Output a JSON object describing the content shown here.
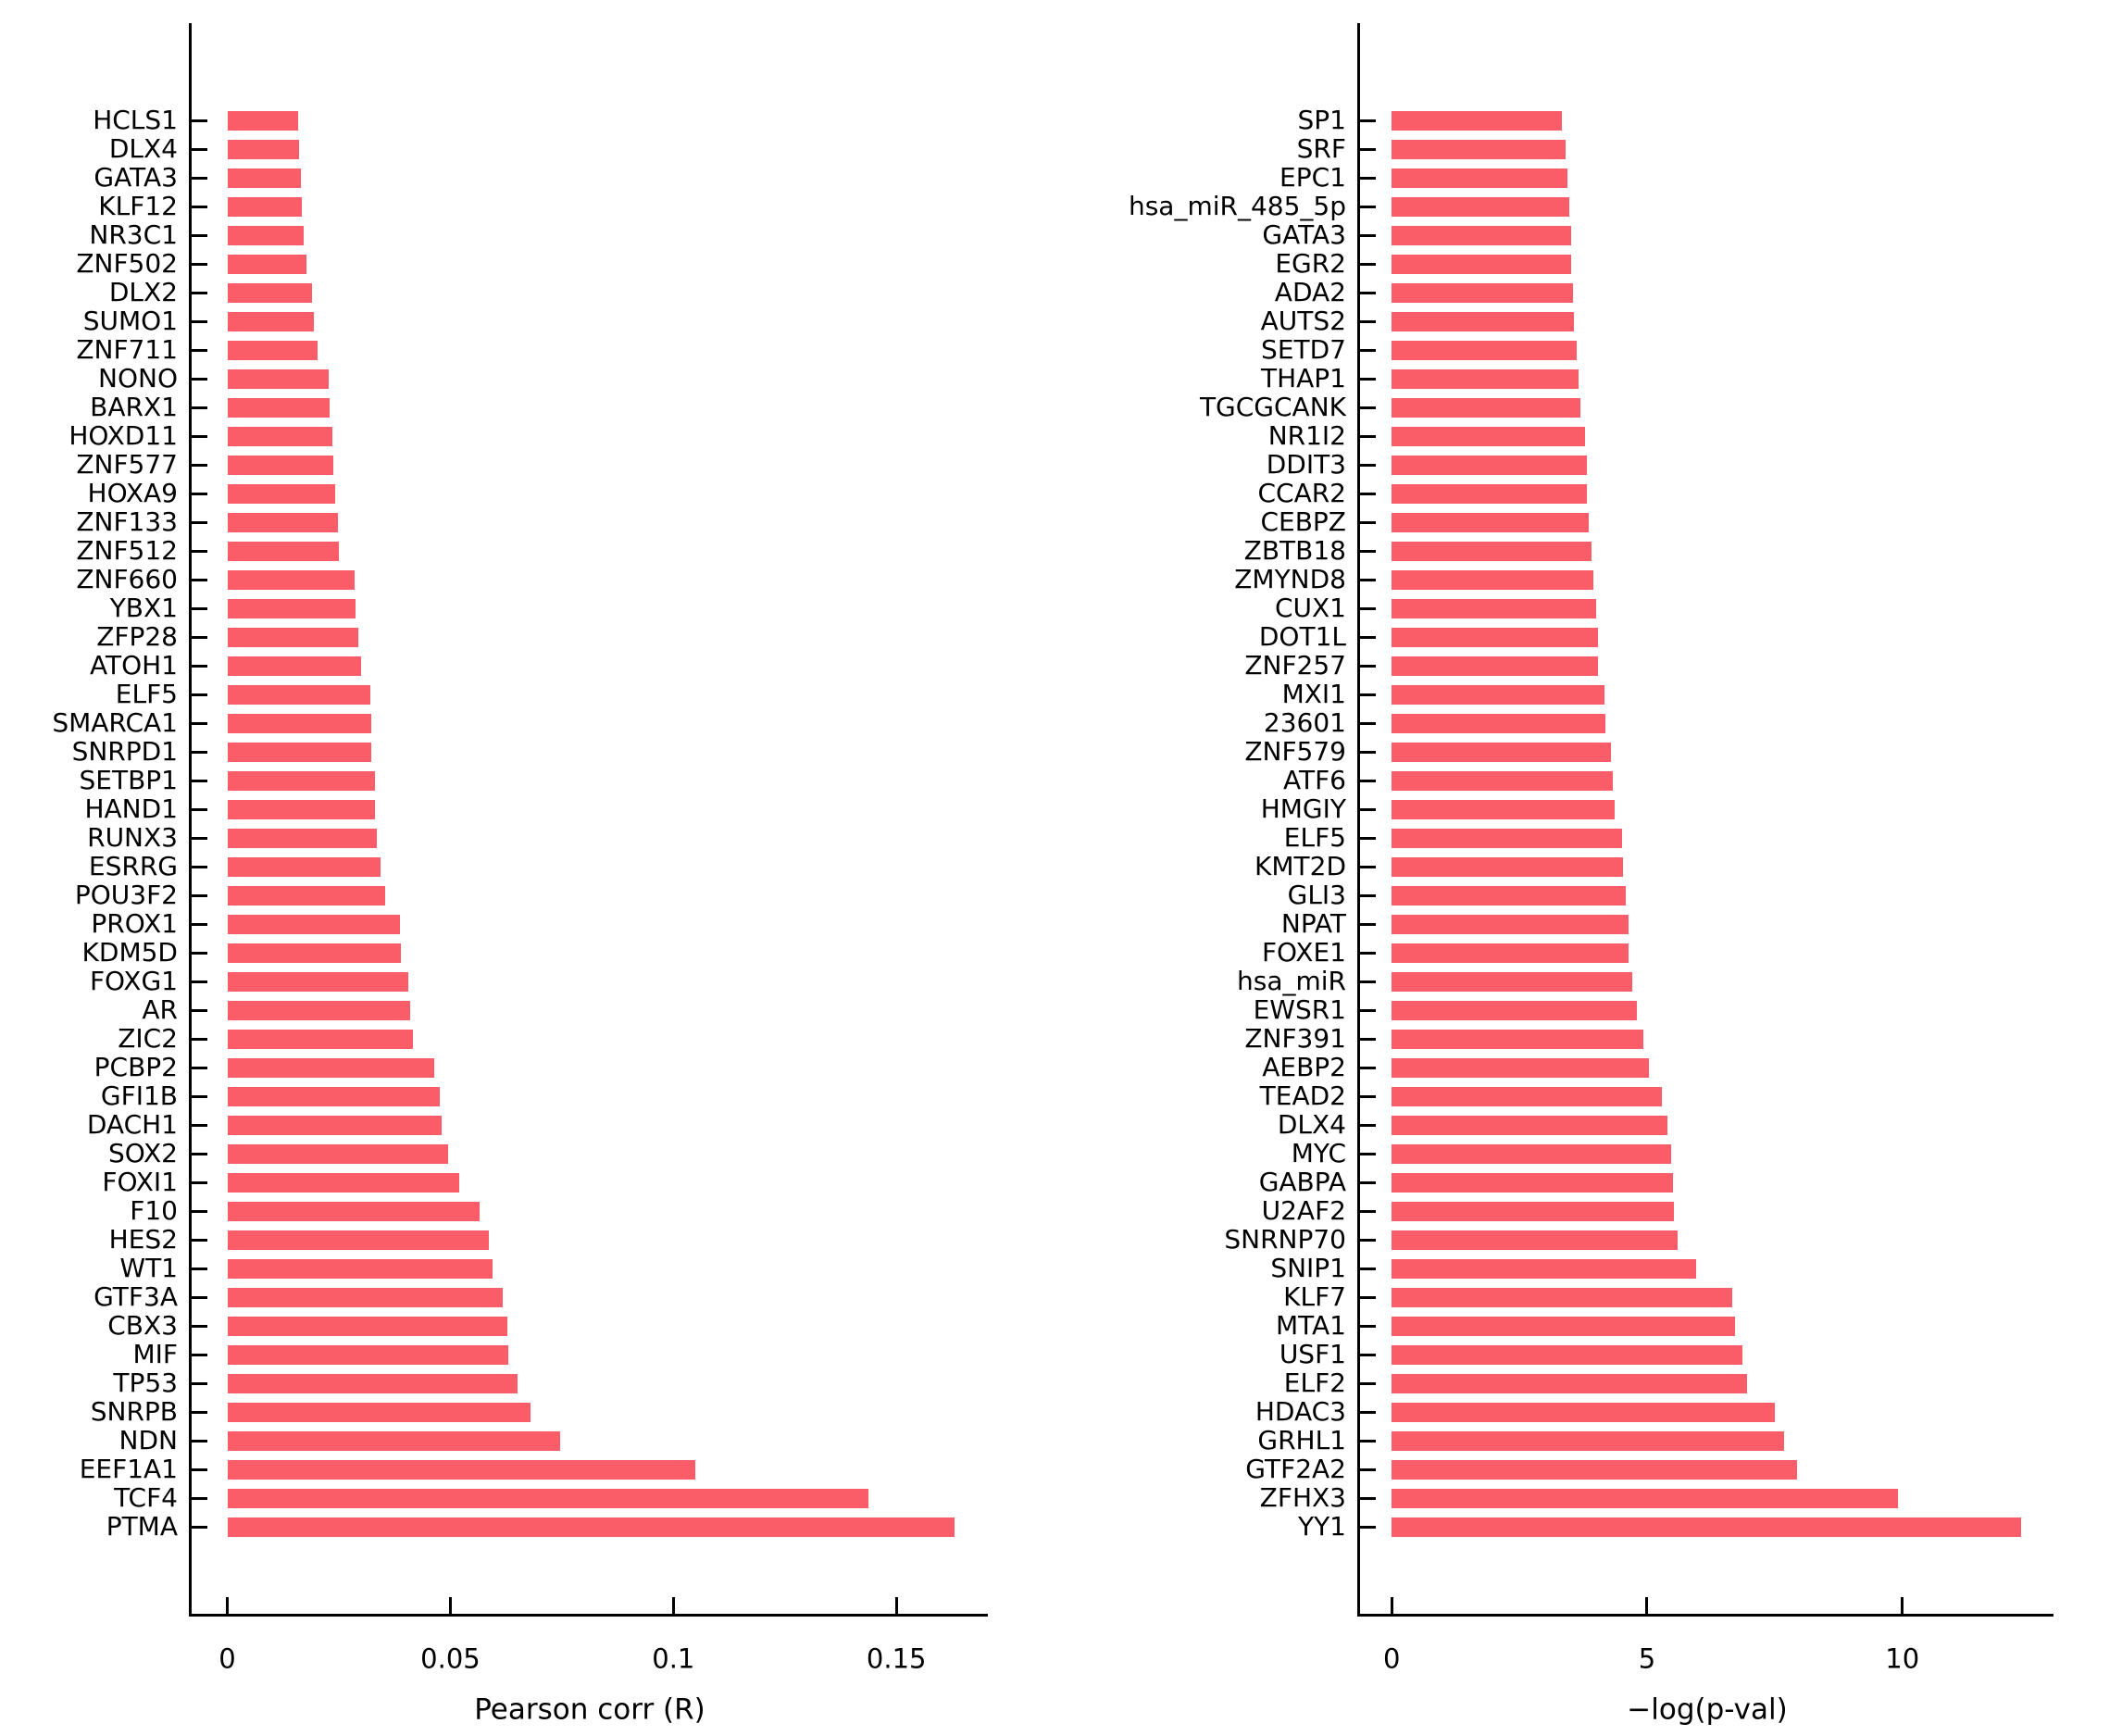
{
  "figure": {
    "background_color": "#ffffff",
    "bar_color": "#fa5c68",
    "axis_color": "#000000",
    "text_color": "#000000"
  },
  "chart_data": [
    {
      "type": "bar",
      "orientation": "horizontal",
      "title": "",
      "xlabel": "Pearson corr (R)",
      "ylabel": "",
      "grid": false,
      "legend": null,
      "xlim": [
        -0.008,
        0.1705
      ],
      "xticks": [
        {
          "v": 0,
          "label": "0"
        },
        {
          "v": 0.05,
          "label": "0.05"
        },
        {
          "v": 0.1,
          "label": "0.1"
        },
        {
          "v": 0.15,
          "label": "0.15"
        }
      ],
      "categories": [
        "HCLS1",
        "DLX4",
        "GATA3",
        "KLF12",
        "NR3C1",
        "ZNF502",
        "DLX2",
        "SUMO1",
        "ZNF711",
        "NONO",
        "BARX1",
        "HOXD11",
        "ZNF577",
        "HOXA9",
        "ZNF133",
        "ZNF512",
        "ZNF660",
        "YBX1",
        "ZFP28",
        "ATOH1",
        "ELF5",
        "SMARCA1",
        "SNRPD1",
        "SETBP1",
        "HAND1",
        "RUNX3",
        "ESRRG",
        "POU3F2",
        "PROX1",
        "KDM5D",
        "FOXG1",
        "AR",
        "ZIC2",
        "PCBP2",
        "GFI1B",
        "DACH1",
        "SOX2",
        "FOXI1",
        "F10",
        "HES2",
        "WT1",
        "GTF3A",
        "CBX3",
        "MIF",
        "TP53",
        "SNRPB",
        "NDN",
        "EEF1A1",
        "TCF4",
        "PTMA"
      ],
      "values": [
        0.0159,
        0.016,
        0.0165,
        0.0166,
        0.0172,
        0.0177,
        0.019,
        0.0194,
        0.0202,
        0.0228,
        0.0229,
        0.0235,
        0.0237,
        0.0241,
        0.0249,
        0.0251,
        0.0286,
        0.0287,
        0.0293,
        0.0299,
        0.0321,
        0.0322,
        0.0322,
        0.0332,
        0.0332,
        0.0336,
        0.0343,
        0.0353,
        0.0386,
        0.039,
        0.0406,
        0.041,
        0.0417,
        0.0463,
        0.0476,
        0.048,
        0.0494,
        0.0519,
        0.0565,
        0.0586,
        0.0595,
        0.0618,
        0.0627,
        0.0629,
        0.0651,
        0.068,
        0.0746,
        0.105,
        0.1438,
        0.1631
      ]
    },
    {
      "type": "bar",
      "orientation": "horizontal",
      "title": "",
      "xlabel": "−log(p-val)",
      "ylabel": "",
      "grid": false,
      "legend": null,
      "xlim": [
        -0.62,
        12.96
      ],
      "xticks": [
        {
          "v": 0,
          "label": "0"
        },
        {
          "v": 5,
          "label": "5"
        },
        {
          "v": 10,
          "label": "10"
        }
      ],
      "categories": [
        "SP1",
        "SRF",
        "EPC1",
        "hsa_miR_485_5p",
        "GATA3",
        "EGR2",
        "ADA2",
        "AUTS2",
        "SETD7",
        "THAP1",
        "TGCGCANK",
        "NR1I2",
        "DDIT3",
        "CCAR2",
        "CEBPZ",
        "ZBTB18",
        "ZMYND8",
        "CUX1",
        "DOT1L",
        "ZNF257",
        "MXI1",
        "23601",
        "ZNF579",
        "ATF6",
        "HMGIY",
        "ELF5",
        "KMT2D",
        "GLI3",
        "NPAT",
        "FOXE1",
        "hsa_miR",
        "EWSR1",
        "ZNF391",
        "AEBP2",
        "TEAD2",
        "DLX4",
        "MYC",
        "GABPA",
        "U2AF2",
        "SNRNP70",
        "SNIP1",
        "KLF7",
        "MTA1",
        "USF1",
        "ELF2",
        "HDAC3",
        "GRHL1",
        "GTF2A2",
        "ZFHX3",
        "YY1"
      ],
      "values": [
        3.33,
        3.41,
        3.44,
        3.47,
        3.51,
        3.51,
        3.55,
        3.57,
        3.63,
        3.66,
        3.69,
        3.78,
        3.82,
        3.83,
        3.86,
        3.92,
        3.95,
        4.0,
        4.04,
        4.04,
        4.16,
        4.18,
        4.3,
        4.33,
        4.37,
        4.51,
        4.53,
        4.59,
        4.64,
        4.64,
        4.71,
        4.81,
        4.93,
        5.04,
        5.29,
        5.4,
        5.48,
        5.51,
        5.52,
        5.59,
        5.96,
        6.66,
        6.72,
        6.87,
        6.95,
        7.5,
        7.69,
        7.93,
        9.92,
        12.33
      ]
    }
  ]
}
